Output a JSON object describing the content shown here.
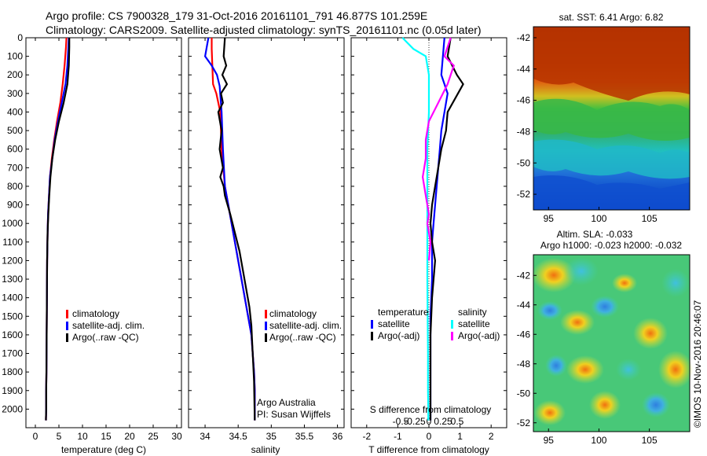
{
  "header": {
    "line1": "Argo profile: CS 7900328_179 31-Oct-2016 20161101_791 46.877S 101.259E",
    "line2": "Climatology: CARS2009. Satellite-adjusted climatology: synTS_20161101.nc (0.05d later)"
  },
  "colors": {
    "climatology": "#ff0000",
    "satellite_adj": "#0000ff",
    "argo": "#000000",
    "sal_satellite": "#00ffff",
    "sal_argo": "#ff00ff"
  },
  "chart_data": [
    {
      "id": "temperature",
      "type": "line",
      "xlabel": "temperature (deg C)",
      "ylabel": "",
      "xlim": [
        -2,
        31
      ],
      "ylim": [
        2100,
        0
      ],
      "xticks": [
        "0",
        "5",
        "10",
        "15",
        "20",
        "25",
        "30"
      ],
      "xtick_values": [
        0,
        5,
        10,
        15,
        20,
        25,
        30
      ],
      "yticks": [
        "0",
        "100",
        "200",
        "300",
        "400",
        "500",
        "600",
        "700",
        "800",
        "900",
        "1000",
        "1100",
        "1200",
        "1300",
        "1400",
        "1500",
        "1600",
        "1700",
        "1800",
        "1900",
        "2000"
      ],
      "ytick_values": [
        0,
        100,
        200,
        300,
        400,
        500,
        600,
        700,
        800,
        900,
        1000,
        1100,
        1200,
        1300,
        1400,
        1500,
        1600,
        1700,
        1800,
        1900,
        2000
      ],
      "legend": [
        "climatology",
        "satellite-adj. clim.",
        "Argo(..raw -QC)"
      ],
      "series": [
        {
          "name": "climatology",
          "color": "#ff0000",
          "x": [
            6.6,
            6.5,
            6.2,
            5.8,
            5.3,
            4.6,
            4.0,
            3.5,
            3.1,
            2.9,
            2.7,
            2.6,
            2.5,
            2.45,
            2.4,
            2.35,
            2.3,
            2.3,
            2.25,
            2.25
          ],
          "y": [
            0,
            50,
            150,
            250,
            350,
            450,
            550,
            650,
            750,
            850,
            950,
            1050,
            1200,
            1400,
            1600,
            1800,
            1900,
            2000,
            2050,
            2060
          ]
        },
        {
          "name": "satellite-adj. clim.",
          "color": "#0000ff",
          "x": [
            7.1,
            7.0,
            6.8,
            6.4,
            5.6,
            4.8,
            4.1,
            3.6,
            3.1,
            2.9,
            2.7,
            2.6,
            2.5,
            2.45,
            2.4,
            2.35,
            2.3,
            2.3,
            2.25,
            2.25
          ],
          "y": [
            0,
            50,
            150,
            250,
            350,
            450,
            550,
            650,
            750,
            850,
            950,
            1050,
            1200,
            1400,
            1600,
            1800,
            1900,
            2000,
            2050,
            2060
          ]
        },
        {
          "name": "Argo(..raw -QC)",
          "color": "#000000",
          "x": [
            7.2,
            7.2,
            7.1,
            6.8,
            6.0,
            5.0,
            4.2,
            3.6,
            3.2,
            2.95,
            2.75,
            2.6,
            2.5,
            2.45,
            2.4,
            2.35,
            2.3,
            2.3,
            2.25,
            2.25
          ],
          "y": [
            0,
            50,
            150,
            250,
            350,
            450,
            550,
            650,
            750,
            850,
            950,
            1050,
            1200,
            1400,
            1600,
            1800,
            1900,
            2000,
            2050,
            2060
          ]
        }
      ]
    },
    {
      "id": "salinity",
      "type": "line",
      "xlabel": "salinity",
      "xlim": [
        33.75,
        36.1
      ],
      "ylim": [
        2100,
        0
      ],
      "xticks": [
        "34",
        "34.5",
        "35",
        "35.5",
        "36"
      ],
      "xtick_values": [
        34,
        34.5,
        35,
        35.5,
        36
      ],
      "legend": [
        "climatology",
        "satellite-adj. clim.",
        "Argo(..raw -QC)"
      ],
      "annotation": [
        "Argo Australia",
        "PI: Susan Wijffels"
      ],
      "series": [
        {
          "name": "climatology",
          "color": "#ff0000",
          "x": [
            34.1,
            34.1,
            34.11,
            34.12,
            34.17,
            34.23,
            34.25,
            34.3,
            34.35,
            34.4,
            34.45,
            34.5,
            34.55,
            34.6,
            34.65,
            34.7,
            34.72,
            34.74,
            34.75,
            34.75
          ],
          "y": [
            0,
            60,
            150,
            250,
            300,
            400,
            600,
            800,
            900,
            1000,
            1100,
            1200,
            1300,
            1400,
            1500,
            1600,
            1700,
            1800,
            1900,
            2060
          ]
        },
        {
          "name": "satellite-adj. clim.",
          "color": "#0000ff",
          "x": [
            34.05,
            34.0,
            34.1,
            34.18,
            34.22,
            34.25,
            34.27,
            34.3,
            34.35,
            34.4,
            34.45,
            34.5,
            34.55,
            34.6,
            34.65,
            34.7,
            34.72,
            34.74,
            34.75,
            34.75
          ],
          "y": [
            0,
            100,
            150,
            200,
            260,
            400,
            600,
            800,
            900,
            1000,
            1100,
            1200,
            1300,
            1400,
            1500,
            1600,
            1700,
            1800,
            1900,
            2060
          ]
        },
        {
          "name": "Argo(..raw -QC)",
          "color": "#000000",
          "x": [
            34.3,
            34.28,
            34.32,
            34.26,
            34.33,
            34.24,
            34.27,
            34.2,
            34.25,
            34.22,
            34.27,
            34.23,
            34.28,
            34.3,
            34.38,
            34.45,
            34.52,
            34.57,
            34.62,
            34.67,
            34.7,
            34.72,
            34.74,
            34.75
          ],
          "y": [
            0,
            100,
            150,
            200,
            250,
            300,
            350,
            400,
            500,
            600,
            700,
            750,
            800,
            850,
            950,
            1050,
            1150,
            1250,
            1350,
            1450,
            1550,
            1700,
            1850,
            2060
          ]
        }
      ]
    },
    {
      "id": "difference",
      "type": "line",
      "xlabel": "T difference from climatology",
      "xlabel_top": "S difference from climatology",
      "xlim": [
        -2.5,
        2.5
      ],
      "ylim": [
        2100,
        0
      ],
      "xticks": [
        "-2",
        "-1",
        "0",
        "1",
        "2"
      ],
      "xtick_values": [
        -2,
        -1,
        0,
        1,
        2
      ],
      "xticks_top": [
        "-0.5",
        "-0.25",
        "0",
        "0.25",
        "0.5"
      ],
      "xtick_top_values": [
        -0.5,
        -0.25,
        0,
        0.25,
        0.5
      ],
      "legend_headers": [
        "temperature",
        "salinity"
      ],
      "legend_t": [
        "satellite",
        "Argo(-adj)"
      ],
      "legend_s": [
        "satellite",
        "Argo(-adj)"
      ],
      "series": [
        {
          "name": "T satellite",
          "color": "#0000ff",
          "x": [
            0.5,
            0.45,
            0.4,
            0.6,
            0.5,
            0.4,
            0.35,
            0.3,
            0.25,
            0.2,
            0.15,
            0.1,
            0.1,
            0.05,
            0.05,
            0.05,
            0.05,
            0.05
          ],
          "y": [
            0,
            100,
            200,
            300,
            400,
            500,
            600,
            700,
            800,
            900,
            1000,
            1100,
            1300,
            1500,
            1700,
            1900,
            2000,
            2060
          ]
        },
        {
          "name": "T Argo(-adj)",
          "color": "#000000",
          "x": [
            0.7,
            0.6,
            0.9,
            1.1,
            0.6,
            0.55,
            0.4,
            0.3,
            0.2,
            0.1,
            0.05,
            0.1,
            0.2,
            0.1,
            0.05,
            0.05,
            0.05,
            0.05
          ],
          "y": [
            0,
            100,
            200,
            250,
            400,
            500,
            600,
            700,
            800,
            900,
            1000,
            1100,
            1200,
            1400,
            1600,
            1800,
            2000,
            2060
          ]
        },
        {
          "name": "S satellite",
          "color": "#00ffff",
          "x": [
            -0.85,
            -0.5,
            -0.1,
            0.0,
            0.0,
            -0.05,
            -0.05,
            -0.05,
            -0.05,
            -0.05,
            -0.05,
            -0.04,
            -0.03,
            -0.03,
            -0.02,
            -0.02
          ],
          "y": [
            0,
            60,
            100,
            200,
            400,
            600,
            800,
            1000,
            1100,
            1200,
            1300,
            1500,
            1700,
            1900,
            2000,
            2060
          ]
        },
        {
          "name": "S Argo(-adj)",
          "color": "#ff00ff",
          "x": [
            0.7,
            0.5,
            0.8,
            0.6,
            0.3,
            0.0,
            -0.1,
            -0.1,
            -0.2,
            -0.1,
            0.0,
            -0.05,
            0.05,
            0.0
          ],
          "y": [
            0,
            100,
            150,
            250,
            350,
            450,
            550,
            650,
            750,
            850,
            950,
            1000,
            1100,
            1200
          ]
        }
      ]
    },
    {
      "id": "sst-map",
      "type": "heatmap",
      "title": "sat. SST: 6.41  Argo: 6.82",
      "xticks": [
        "95",
        "100",
        "105"
      ],
      "xtick_values": [
        95,
        100,
        105
      ],
      "yticks": [
        "-42",
        "-44",
        "-46",
        "-48",
        "-50",
        "-52"
      ],
      "ytick_values": [
        -42,
        -44,
        -46,
        -48,
        -50,
        -52
      ],
      "xlim": [
        93.5,
        109
      ],
      "ylim": [
        -53,
        -41.3
      ]
    },
    {
      "id": "sla-map",
      "type": "heatmap",
      "title": "Altim. SLA: -0.033",
      "subtitle": "Argo h1000: -0.023 h2000: -0.032",
      "xticks": [
        "95",
        "100",
        "105"
      ],
      "xtick_values": [
        95,
        100,
        105
      ],
      "yticks": [
        "-42",
        "-44",
        "-46",
        "-48",
        "-50",
        "-52"
      ],
      "ytick_values": [
        -42,
        -44,
        -46,
        -48,
        -50,
        -52
      ],
      "xlim": [
        93.5,
        109
      ],
      "ylim": [
        -52.6,
        -40.6
      ]
    }
  ],
  "footer": {
    "credit": "©IMOS 10-Nov-2016 20:46:07"
  }
}
